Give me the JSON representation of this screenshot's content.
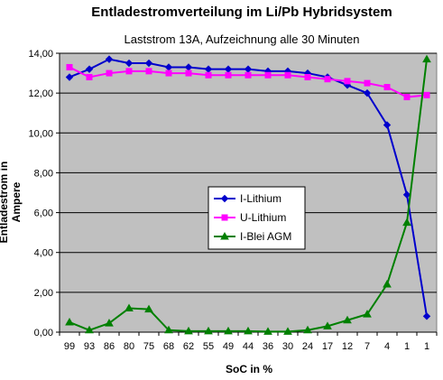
{
  "chart_data": {
    "type": "line",
    "title": "Entladestromverteilung im Li/Pb Hybridsystem",
    "subtitle": "Laststrom 13A, Aufzeichnung alle 30 Minuten",
    "xlabel": "SoC in %",
    "ylabel": "Entladestrom in Ampere",
    "categories": [
      "99",
      "93",
      "86",
      "80",
      "75",
      "68",
      "62",
      "55",
      "49",
      "44",
      "36",
      "30",
      "24",
      "17",
      "12",
      "7",
      "4",
      "1",
      "1"
    ],
    "yticks": [
      "0,00",
      "2,00",
      "4,00",
      "6,00",
      "8,00",
      "10,00",
      "12,00",
      "14,00"
    ],
    "ylim": [
      0,
      14
    ],
    "grid": "horizontal",
    "legend_position": "center",
    "series": [
      {
        "name": "I-Lithium",
        "color": "#0000cc",
        "marker": "diamond",
        "values": [
          12.8,
          13.2,
          13.7,
          13.5,
          13.5,
          13.3,
          13.3,
          13.2,
          13.2,
          13.2,
          13.1,
          13.1,
          13.0,
          12.8,
          12.4,
          12.0,
          10.4,
          6.9,
          0.8
        ]
      },
      {
        "name": "U-Lithium",
        "color": "#ff00ff",
        "marker": "square",
        "values": [
          13.3,
          12.8,
          13.0,
          13.1,
          13.1,
          13.0,
          13.0,
          12.9,
          12.9,
          12.9,
          12.9,
          12.9,
          12.8,
          12.7,
          12.6,
          12.5,
          12.3,
          11.8,
          11.9
        ]
      },
      {
        "name": "I-Blei AGM",
        "color": "#008000",
        "marker": "triangle",
        "values": [
          0.5,
          0.1,
          0.45,
          1.2,
          1.15,
          0.1,
          0.05,
          0.05,
          0.05,
          0.05,
          0.03,
          0.03,
          0.1,
          0.3,
          0.6,
          0.9,
          2.4,
          5.5,
          13.7
        ]
      }
    ]
  }
}
